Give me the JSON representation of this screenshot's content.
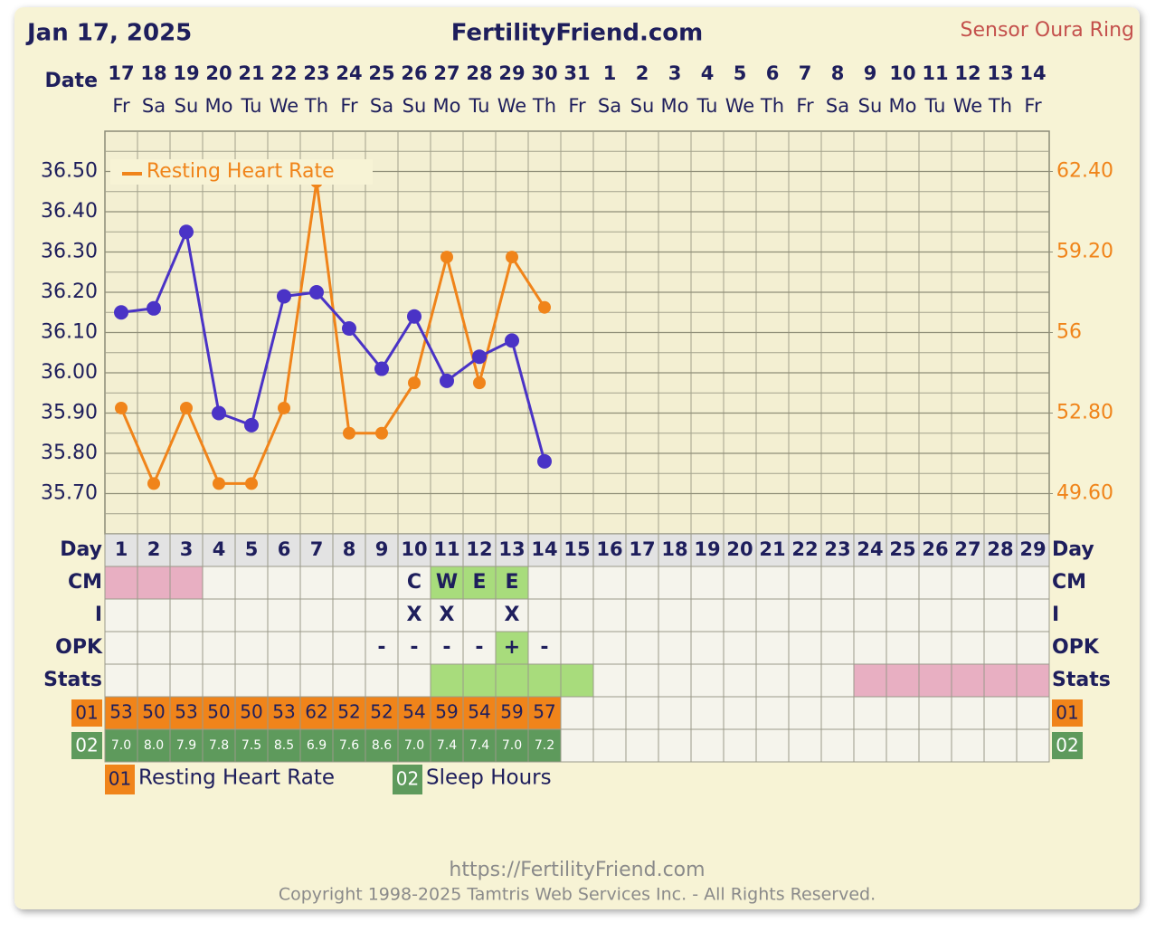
{
  "header": {
    "date": "Jan 17, 2025",
    "site": "FertilityFriend.com",
    "sensor": "Sensor Oura Ring"
  },
  "chart_data": {
    "type": "line",
    "date_label": "Date",
    "dates": [
      17,
      18,
      19,
      20,
      21,
      22,
      23,
      24,
      25,
      26,
      27,
      28,
      29,
      30,
      31,
      1,
      2,
      3,
      4,
      5,
      6,
      7,
      8,
      9,
      10,
      11,
      12,
      13,
      14
    ],
    "weekdays": [
      "Fr",
      "Sa",
      "Su",
      "Mo",
      "Tu",
      "We",
      "Th",
      "Fr",
      "Sa",
      "Su",
      "Mo",
      "Tu",
      "We",
      "Th",
      "Fr",
      "Sa",
      "Su",
      "Mo",
      "Tu",
      "We",
      "Th",
      "Fr",
      "Sa",
      "Su",
      "Mo",
      "Tu",
      "We",
      "Th",
      "Fr"
    ],
    "day_label": "Day",
    "categories": [
      1,
      2,
      3,
      4,
      5,
      6,
      7,
      8,
      9,
      10,
      11,
      12,
      13,
      14,
      15,
      16,
      17,
      18,
      19,
      20,
      21,
      22,
      23,
      24,
      25,
      26,
      27,
      28,
      29
    ],
    "series": [
      {
        "color": "#4a33c6",
        "values": [
          36.15,
          36.16,
          36.35,
          35.9,
          35.87,
          36.19,
          36.2,
          36.11,
          36.01,
          36.14,
          35.98,
          36.04,
          36.08,
          35.78,
          null,
          null,
          null,
          null,
          null,
          null,
          null,
          null,
          null,
          null,
          null,
          null,
          null,
          null,
          null
        ]
      },
      {
        "name": "Resting Heart Rate",
        "code": "01",
        "color": "#f0841a",
        "axis": "y2",
        "values": [
          53,
          50,
          53,
          50,
          50,
          53,
          62,
          52,
          52,
          54,
          59,
          54,
          59,
          57,
          null,
          null,
          null,
          null,
          null,
          null,
          null,
          null,
          null,
          null,
          null,
          null,
          null,
          null,
          null
        ]
      }
    ],
    "ylim": [
      35.6,
      36.6
    ],
    "yticks": [
      {
        "value": 35.7,
        "label": "35.70"
      },
      {
        "value": 35.8,
        "label": "35.80"
      },
      {
        "value": 35.9,
        "label": "35.90"
      },
      {
        "value": 36.0,
        "label": "36.00"
      },
      {
        "value": 36.1,
        "label": "36.10"
      },
      {
        "value": 36.2,
        "label": "36.20"
      },
      {
        "value": 36.3,
        "label": "36.30"
      },
      {
        "value": 36.4,
        "label": "36.40"
      },
      {
        "value": 36.5,
        "label": "36.50"
      }
    ],
    "y2lim": [
      48,
      64
    ],
    "y2ticks": [
      {
        "value": 49.6,
        "label": "49.60"
      },
      {
        "value": 52.8,
        "label": "52.80"
      },
      56,
      {
        "value": 59.2,
        "label": "59.20"
      },
      {
        "value": 62.4,
        "label": "62.40"
      }
    ],
    "grid": true,
    "legend_position": "upper left"
  },
  "table": {
    "rows": [
      {
        "label": "CM",
        "texts": [
          null,
          null,
          null,
          null,
          null,
          null,
          null,
          null,
          null,
          "C",
          "W",
          "E",
          "E",
          null,
          null,
          null,
          null,
          null,
          null,
          null,
          null,
          null,
          null,
          null,
          null,
          null,
          null,
          null,
          null
        ],
        "fills": [
          "#e8afc2",
          "#e8afc2",
          "#e8afc2",
          null,
          null,
          null,
          null,
          null,
          null,
          null,
          "#a8dc7c",
          "#a8dc7c",
          "#a8dc7c",
          null,
          null,
          null,
          null,
          null,
          null,
          null,
          null,
          null,
          null,
          null,
          null,
          null,
          null,
          null,
          null
        ]
      },
      {
        "label": "I",
        "texts": [
          null,
          null,
          null,
          null,
          null,
          null,
          null,
          null,
          null,
          "X",
          "X",
          null,
          "X",
          null,
          null,
          null,
          null,
          null,
          null,
          null,
          null,
          null,
          null,
          null,
          null,
          null,
          null,
          null,
          null
        ]
      },
      {
        "label": "OPK",
        "texts": [
          null,
          null,
          null,
          null,
          null,
          null,
          null,
          null,
          "-",
          "-",
          "-",
          "-",
          "+",
          "-",
          null,
          null,
          null,
          null,
          null,
          null,
          null,
          null,
          null,
          null,
          null,
          null,
          null,
          null,
          null
        ],
        "fills": [
          null,
          null,
          null,
          null,
          null,
          null,
          null,
          null,
          null,
          null,
          null,
          null,
          "#a8dc7c",
          null,
          null,
          null,
          null,
          null,
          null,
          null,
          null,
          null,
          null,
          null,
          null,
          null,
          null,
          null,
          null
        ]
      },
      {
        "label": "Stats",
        "fills": [
          null,
          null,
          null,
          null,
          null,
          null,
          null,
          null,
          null,
          null,
          "#a8dc7c",
          "#a8dc7c",
          "#a8dc7c",
          "#a8dc7c",
          "#a8dc7c",
          null,
          null,
          null,
          null,
          null,
          null,
          null,
          null,
          "#e8afc2",
          "#e8afc2",
          "#e8afc2",
          "#e8afc2",
          "#e8afc2",
          "#e8afc2"
        ]
      }
    ],
    "sleep": {
      "code": "02",
      "name": "Sleep Hours",
      "color": "#5e9a5c",
      "values": [
        7.0,
        8.0,
        7.9,
        7.8,
        7.5,
        8.5,
        6.9,
        7.6,
        8.6,
        7.0,
        7.4,
        7.4,
        7.0,
        7.2,
        null,
        null,
        null,
        null,
        null,
        null,
        null,
        null,
        null,
        null,
        null,
        null,
        null,
        null,
        null
      ],
      "value_labels": [
        "7.0",
        "8.0",
        "7.9",
        "7.8",
        "7.5",
        "8.5",
        "6.9",
        "7.6",
        "8.6",
        "7.0",
        "7.4",
        "7.4",
        "7.0",
        "7.2",
        null,
        null,
        null,
        null,
        null,
        null,
        null,
        null,
        null,
        null,
        null,
        null,
        null,
        null,
        null
      ]
    }
  },
  "footer": {
    "url": "https://FertilityFriend.com",
    "copyright": "Copyright 1998-2025 Tamtris Web Services Inc. - All Rights Reserved."
  }
}
